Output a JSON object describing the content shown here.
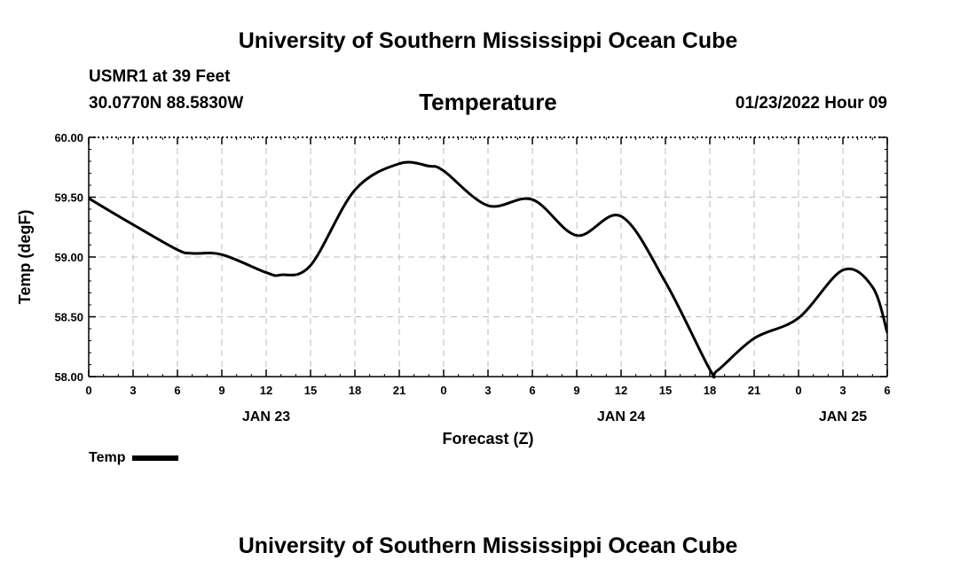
{
  "header": {
    "title_top": "University of Southern Mississippi Ocean Cube",
    "title_bottom": "University of Southern Mississippi Ocean Cube",
    "station": "USMR1 at 39 Feet",
    "coords": "30.0770N  88.5830W",
    "datetime": "01/23/2022 Hour 09"
  },
  "chart_data": {
    "type": "line",
    "title": "Temperature",
    "xlabel": "Forecast (Z)",
    "ylabel": "Temp (degF)",
    "ylim": [
      58.0,
      60.0
    ],
    "xlim": [
      0,
      54
    ],
    "yticks": [
      "58.00",
      "58.50",
      "59.00",
      "59.50",
      "60.00"
    ],
    "xtick_labels": [
      "0",
      "3",
      "6",
      "9",
      "12",
      "15",
      "18",
      "21",
      "0",
      "3",
      "6",
      "9",
      "12",
      "15",
      "18",
      "21",
      "0",
      "3",
      "6"
    ],
    "date_labels": [
      {
        "label": "JAN 23",
        "hour": 12
      },
      {
        "label": "JAN 24",
        "hour": 36
      },
      {
        "label": "JAN 25",
        "hour": 51
      }
    ],
    "grid": true,
    "series": [
      {
        "name": "Temp",
        "x": [
          0,
          3,
          6,
          7,
          9,
          12,
          13,
          15,
          18,
          21,
          23,
          24,
          27,
          30,
          33,
          36,
          39,
          42,
          42.5,
          45,
          48,
          51,
          53,
          54
        ],
        "values": [
          59.49,
          59.27,
          59.06,
          59.03,
          59.02,
          58.87,
          58.85,
          58.93,
          59.56,
          59.78,
          59.76,
          59.72,
          59.43,
          59.48,
          59.18,
          59.34,
          58.79,
          58.06,
          58.05,
          58.32,
          58.49,
          58.89,
          58.75,
          58.37
        ]
      }
    ]
  },
  "legend": {
    "label": "Temp"
  }
}
